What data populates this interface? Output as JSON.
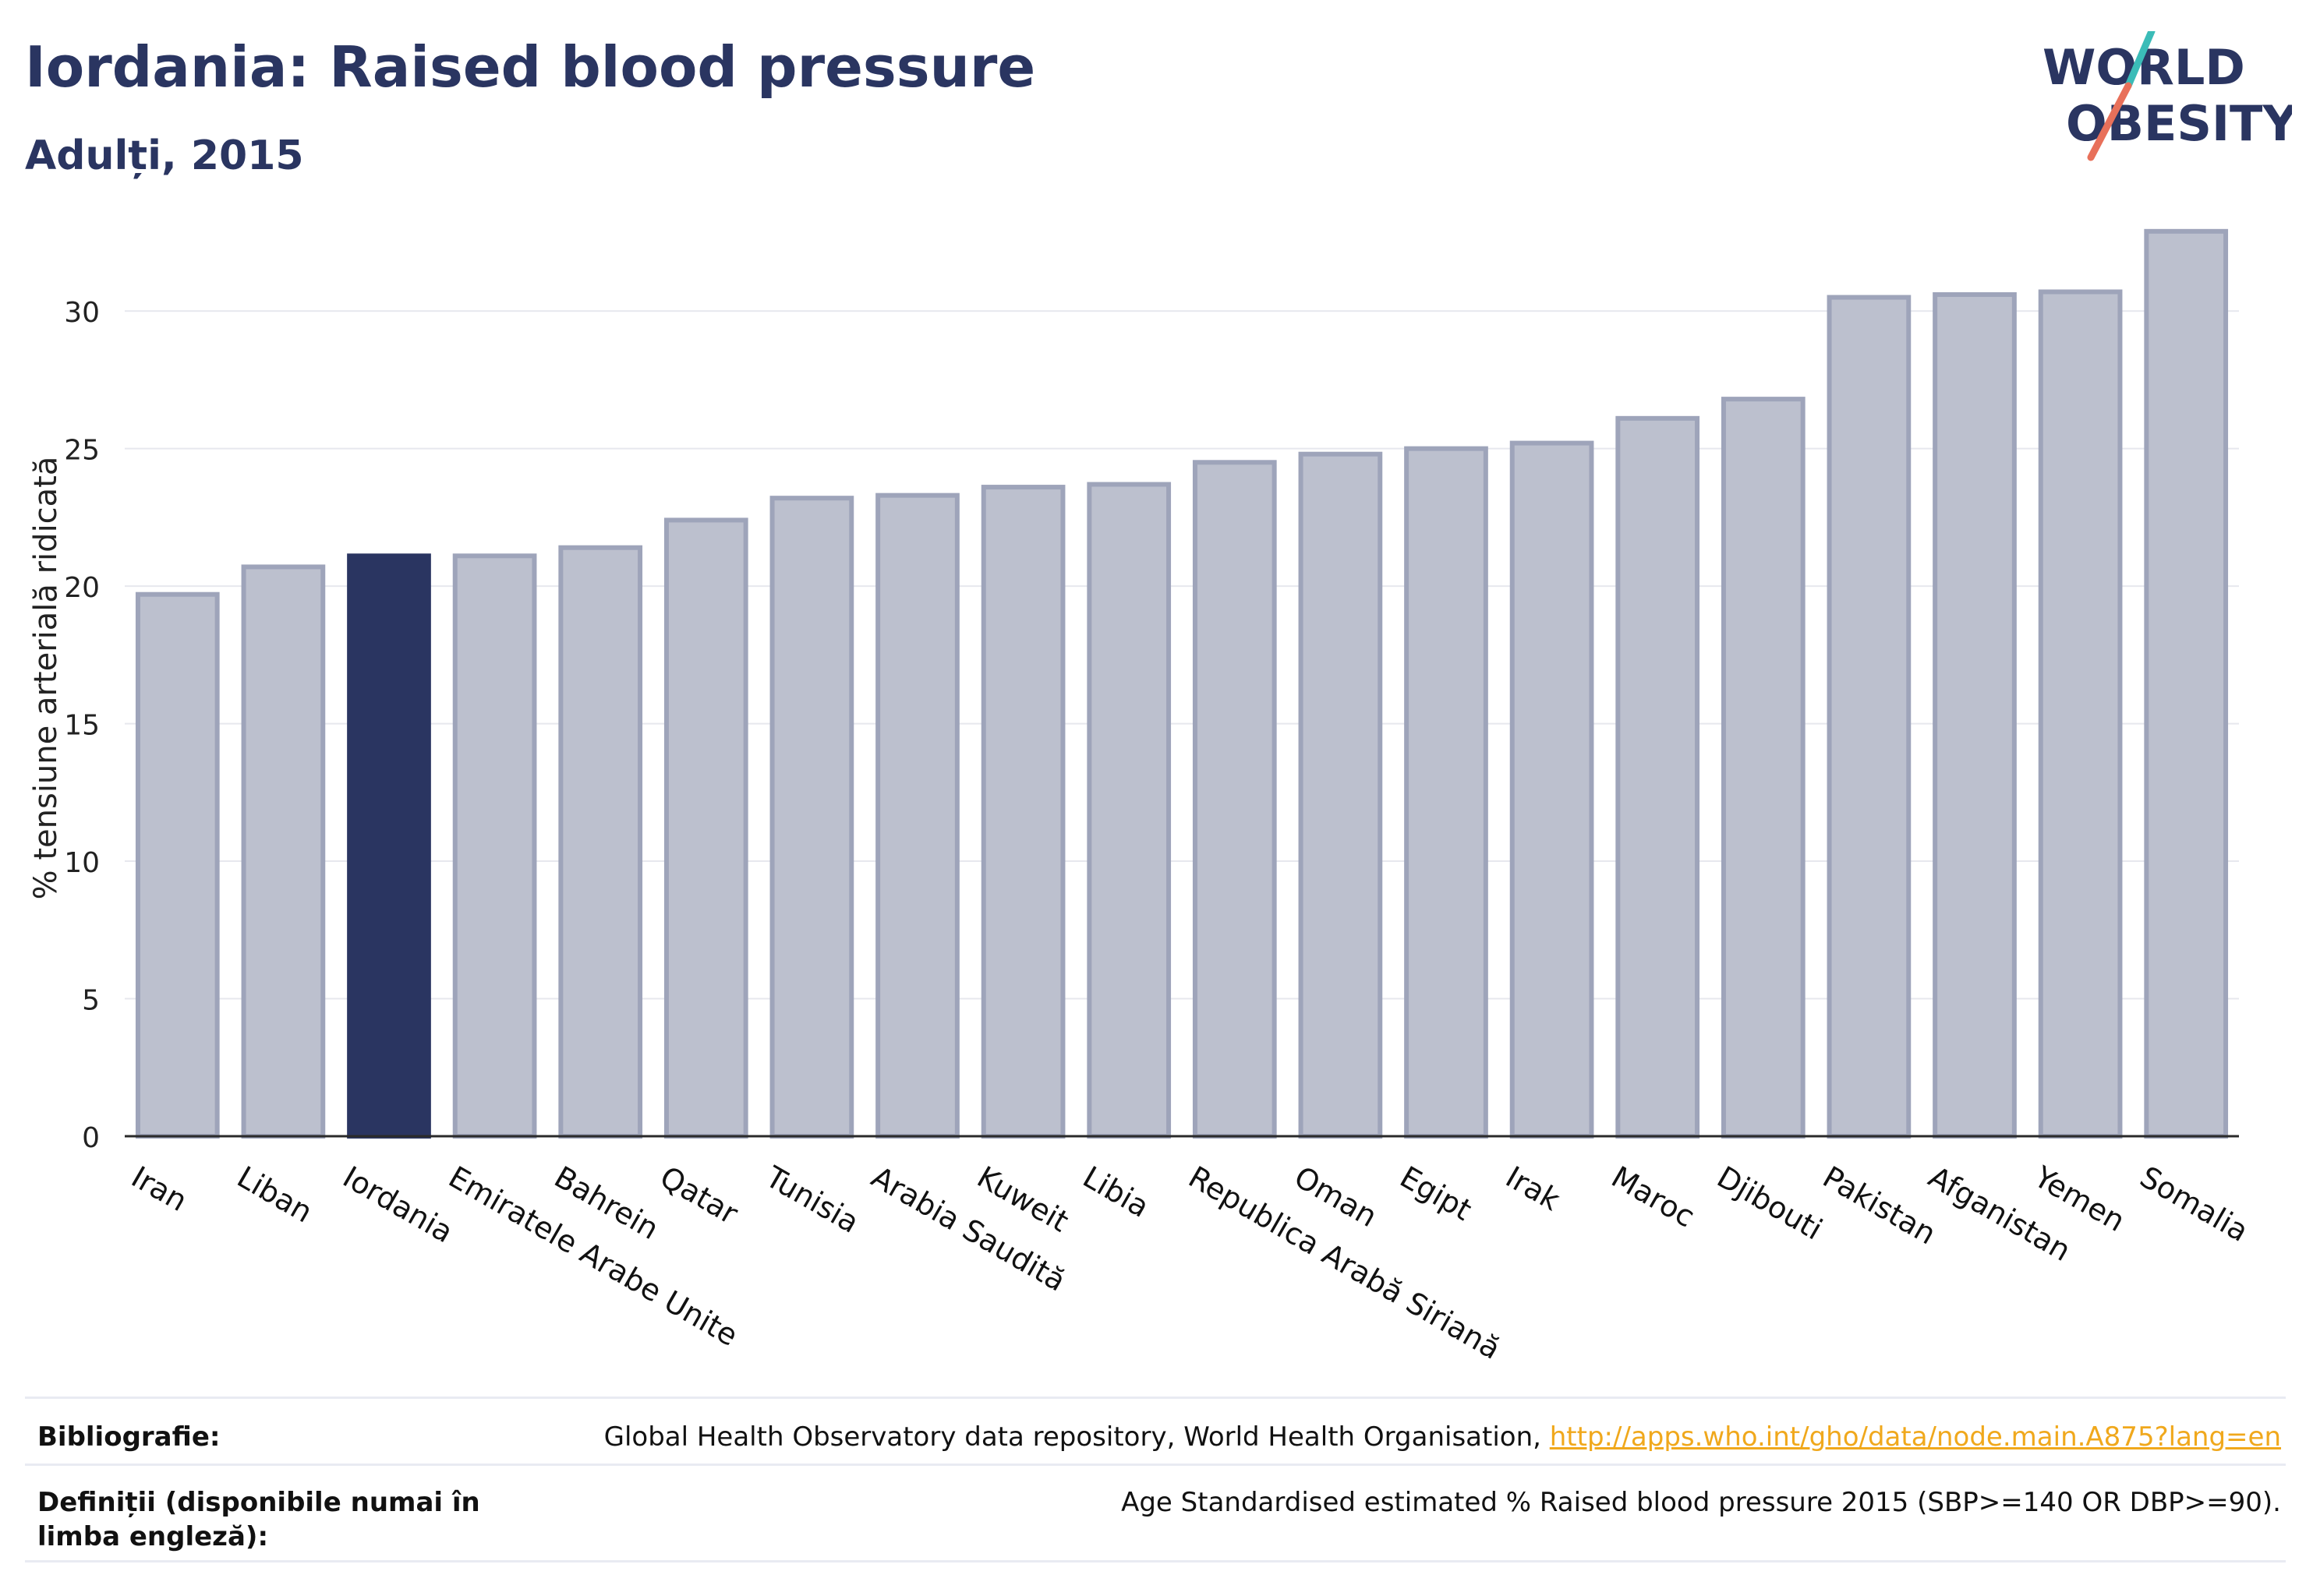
{
  "header": {
    "title": "Iordania: Raised blood pressure",
    "subtitle": "Adulți, 2015"
  },
  "logo": {
    "line1": "WORLD",
    "line2": "OBESITY",
    "accent_colors": [
      "#3bbcb8",
      "#e8705a"
    ]
  },
  "chart_data": {
    "type": "bar",
    "ylabel": "% tensiune arterială ridicată",
    "xlabel": "",
    "ylim": [
      0,
      34
    ],
    "yticks": [
      0,
      5,
      10,
      15,
      20,
      25,
      30
    ],
    "grid": true,
    "highlight": "Iordania",
    "colors": {
      "highlight": "#2a3561",
      "default_fill": "#bcc0ce",
      "default_stroke": "#9ea4ba",
      "grid": "#e7e8ee",
      "axis": "#2a2a2a"
    },
    "categories": [
      "Iran",
      "Liban",
      "Iordania",
      "Emiratele Arabe Unite",
      "Bahrein",
      "Qatar",
      "Tunisia",
      "Arabia Saudită",
      "Kuweit",
      "Libia",
      "Republica Arabă Siriană",
      "Oman",
      "Egipt",
      "Irak",
      "Maroc",
      "Djibouti",
      "Pakistan",
      "Afganistan",
      "Yemen",
      "Somalia"
    ],
    "values": [
      19.7,
      20.7,
      21.1,
      21.1,
      21.4,
      22.4,
      23.2,
      23.3,
      23.6,
      23.7,
      24.5,
      24.8,
      25.0,
      25.2,
      26.1,
      26.8,
      30.5,
      30.6,
      30.7,
      32.9
    ]
  },
  "references": {
    "bibliography_label": "Bibliografie:",
    "bibliography_text": "Global Health Observatory data repository, World Health Organisation, ",
    "bibliography_link": "http://apps.who.int/gho/data/node.main.A875?lang=en",
    "definitions_label": "Definiții (disponibile numai în limba engleză):",
    "definitions_text": "Age Standardised estimated % Raised blood pressure 2015 (SBP>=140 OR DBP>=90)."
  }
}
